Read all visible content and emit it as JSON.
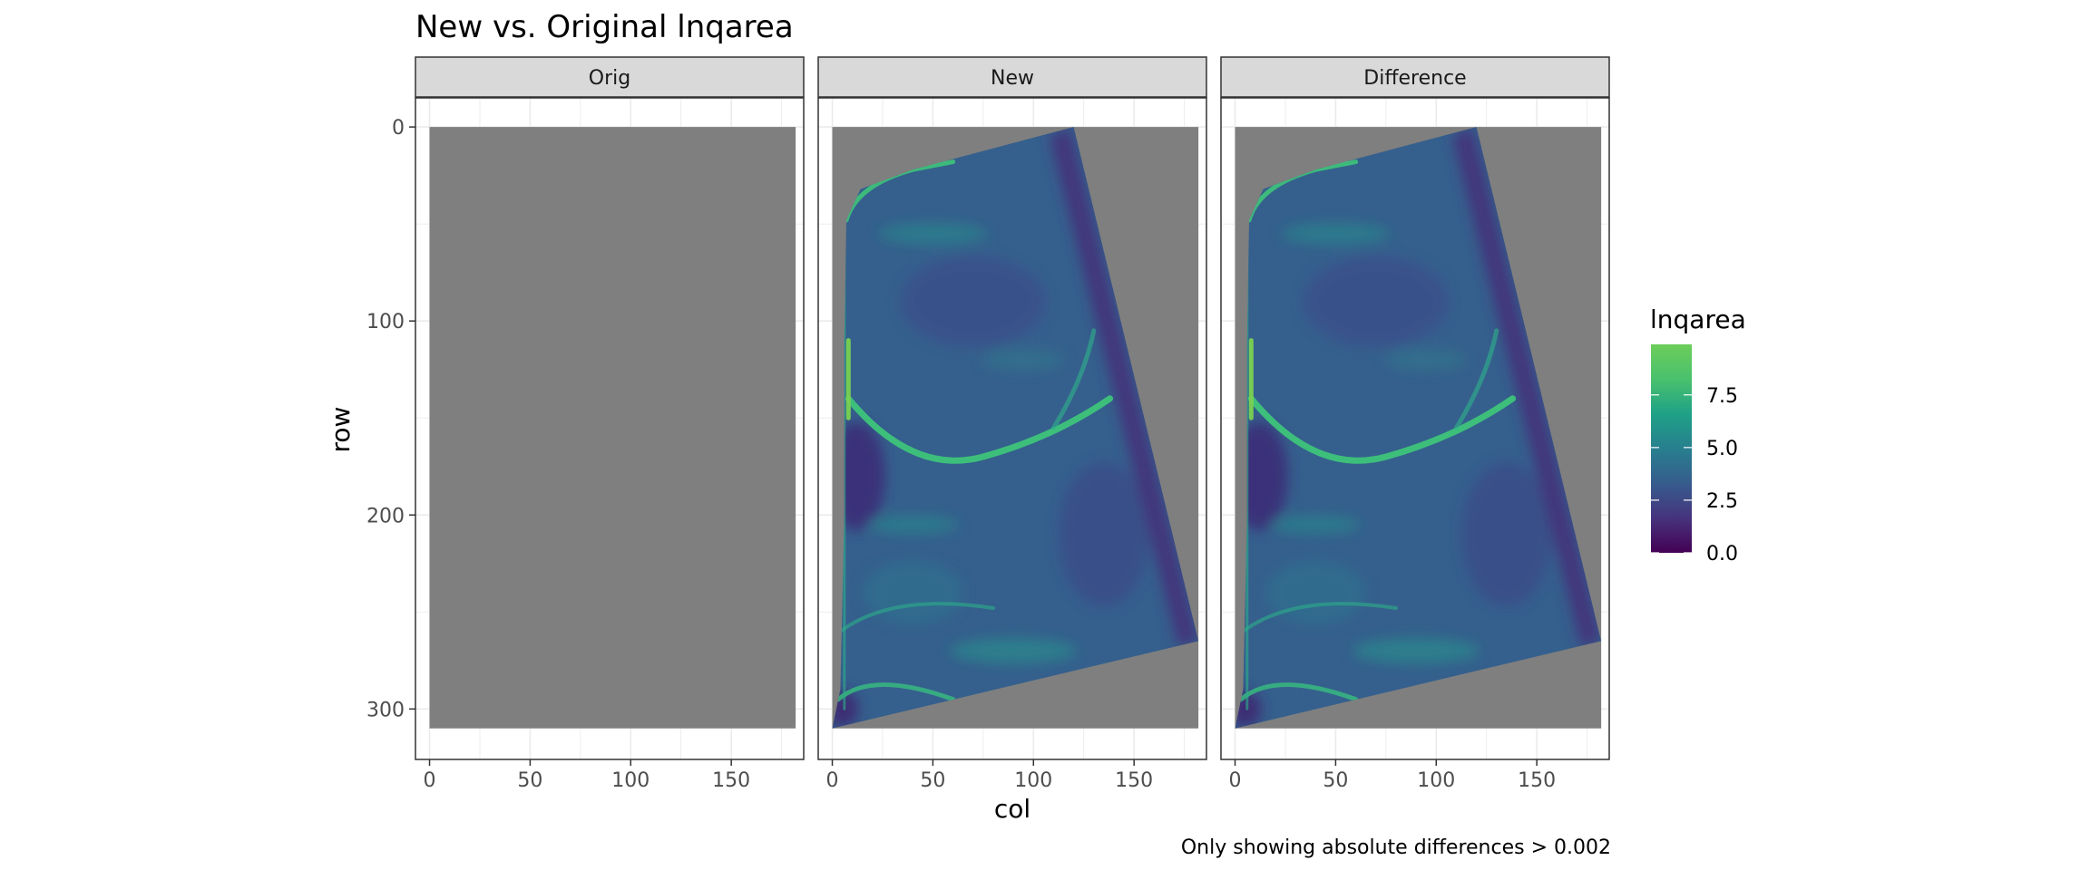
{
  "chart_data": {
    "type": "heatmap",
    "title": "New vs. Original lnqarea",
    "caption": "Only showing absolute differences > 0.002",
    "xlabel": "col",
    "ylabel": "row",
    "xlim": [
      -7,
      186
    ],
    "ylim": [
      326,
      -15
    ],
    "y_reversed": true,
    "grid": true,
    "x_ticks": [
      0,
      50,
      100,
      150
    ],
    "y_ticks": [
      0,
      100,
      200,
      300
    ],
    "x_tick_labels": [
      "0",
      "50",
      "100",
      "150"
    ],
    "y_tick_labels": [
      "0",
      "100",
      "200",
      "300"
    ],
    "na_color": "#7f7f7f",
    "panels": [
      {
        "label": "Orig",
        "raster_extent": {
          "col": [
            0,
            182
          ],
          "row": [
            0,
            310
          ]
        },
        "valid_region": []
      },
      {
        "label": "New",
        "raster_extent": {
          "col": [
            0,
            182
          ],
          "row": [
            0,
            310
          ]
        },
        "valid_region": [
          [
            120,
            0
          ],
          [
            182,
            265
          ],
          [
            0,
            310
          ],
          [
            4,
            290
          ],
          [
            6,
            200
          ],
          [
            6,
            110
          ],
          [
            7,
            48
          ],
          [
            14,
            32
          ],
          [
            40,
            22
          ]
        ]
      },
      {
        "label": "Difference",
        "raster_extent": {
          "col": [
            0,
            182
          ],
          "row": [
            0,
            310
          ]
        },
        "valid_region": [
          [
            120,
            0
          ],
          [
            182,
            265
          ],
          [
            0,
            310
          ],
          [
            4,
            290
          ],
          [
            6,
            200
          ],
          [
            6,
            110
          ],
          [
            7,
            48
          ],
          [
            14,
            32
          ],
          [
            40,
            22
          ]
        ]
      }
    ],
    "legend": {
      "title": "lnqarea",
      "position": "right",
      "range": [
        0,
        9.9
      ],
      "ticks": [
        0,
        2.5,
        5,
        7.5
      ],
      "tick_labels": [
        "0.0",
        "2.5",
        "5.0",
        "7.5"
      ],
      "colors": [
        "#440154",
        "#46337e",
        "#365c8d",
        "#277f8e",
        "#1fa187",
        "#4ac16d",
        "#6ccd5a"
      ]
    }
  }
}
